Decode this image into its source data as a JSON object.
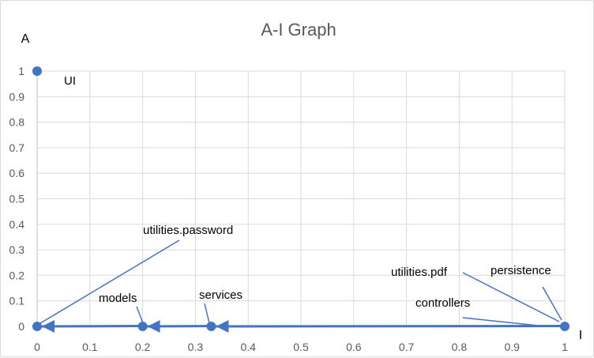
{
  "chart_data": {
    "type": "scatter",
    "title": "A-I Graph",
    "xlabel": "I",
    "ylabel": "A",
    "xlim": [
      0,
      1
    ],
    "ylim": [
      0,
      1
    ],
    "x_ticks": [
      "0",
      "0.1",
      "0.2",
      "0.3",
      "0.4",
      "0.5",
      "0.6",
      "0.7",
      "0.8",
      "0.9",
      "1"
    ],
    "y_ticks": [
      "0",
      "0.1",
      "0.2",
      "0.3",
      "0.4",
      "0.5",
      "0.6",
      "0.7",
      "0.8",
      "0.9",
      "1"
    ],
    "grid": true,
    "points": [
      {
        "label": "UI",
        "x": 0,
        "y": 1
      },
      {
        "label": "utilities.password",
        "x": 0,
        "y": 0
      },
      {
        "label": "models",
        "x": 0.2,
        "y": 0
      },
      {
        "label": "services",
        "x": 0.33,
        "y": 0
      },
      {
        "label": "utilities.pdf",
        "x": 1,
        "y": 0
      },
      {
        "label": "persistence",
        "x": 1,
        "y": 0
      },
      {
        "label": "controllers",
        "x": 1,
        "y": 0
      }
    ],
    "connections": [
      [
        1,
        0
      ],
      [
        0.33,
        0
      ],
      [
        0.2,
        0
      ],
      [
        0,
        0
      ]
    ],
    "series_color": "#4472c4",
    "grid_color": "#d9d9d9"
  }
}
